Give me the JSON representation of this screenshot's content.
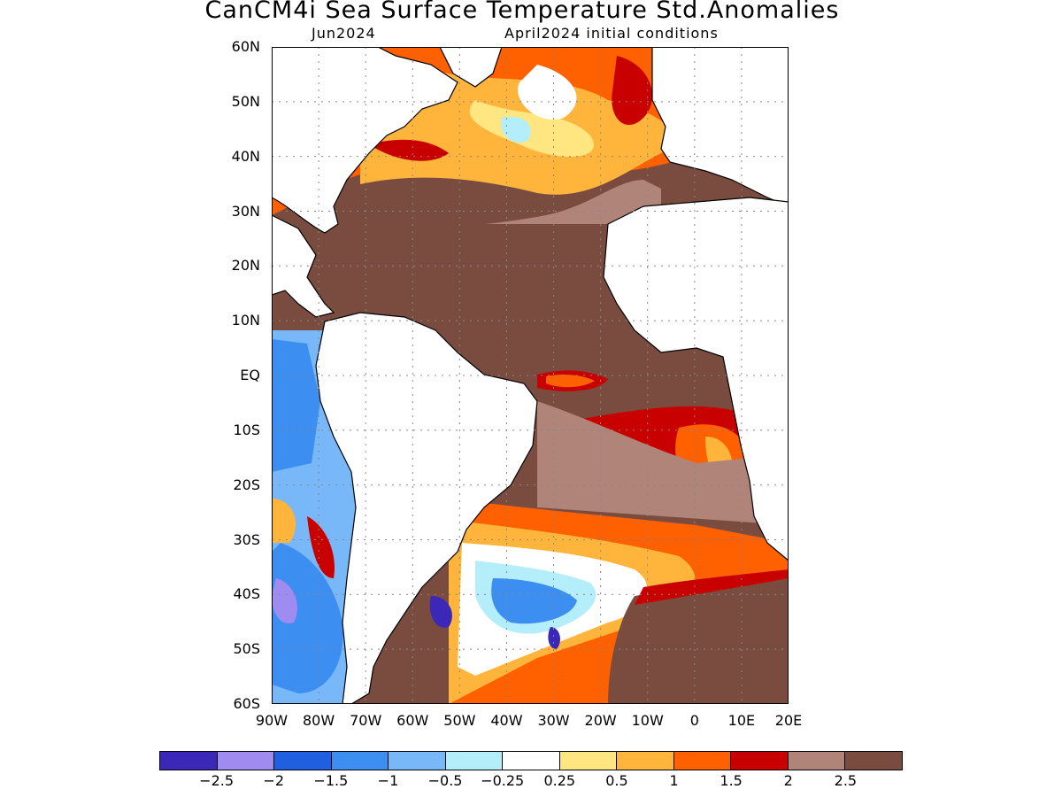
{
  "title": "CanCM4i Sea Surface Temperature Std.Anomalies",
  "subtitle_left": "Jun2024",
  "subtitle_right": "April2024 initial conditions",
  "map": {
    "lat_labels": [
      "60N",
      "50N",
      "40N",
      "30N",
      "20N",
      "10N",
      "EQ",
      "10S",
      "20S",
      "30S",
      "40S",
      "50S",
      "60S"
    ],
    "lon_labels": [
      "90W",
      "80W",
      "70W",
      "60W",
      "50W",
      "40W",
      "30W",
      "20W",
      "10W",
      "0",
      "10E",
      "20E"
    ],
    "land_color": "#ffffff",
    "coast_color": "#000000",
    "grid": "dotted"
  },
  "colorbar": {
    "colors": [
      "#3b28b8",
      "#9f8cf0",
      "#2060e0",
      "#3c8ef0",
      "#78b8f8",
      "#b4eefa",
      "#ffffff",
      "#ffe680",
      "#ffb43c",
      "#ff6000",
      "#c80000",
      "#b08478",
      "#7a4c40"
    ],
    "labels": [
      "−2.5",
      "−2",
      "−1.5",
      "−1",
      "−0.5",
      "−0.25",
      "0.25",
      "0.5",
      "1",
      "1.5",
      "2",
      "2.5"
    ]
  }
}
